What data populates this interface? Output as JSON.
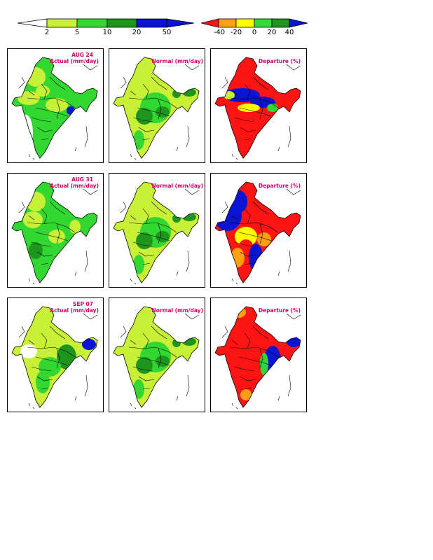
{
  "legend_actual": {
    "ticks": [
      "2",
      "5",
      "10",
      "20",
      "50"
    ],
    "colors": [
      "#ffffff",
      "#c8f036",
      "#32d732",
      "#1e961e",
      "#0a14d2"
    ]
  },
  "legend_departure": {
    "ticks": [
      "-40",
      "-20",
      "0",
      "20",
      "40"
    ],
    "colors": [
      "#ff1414",
      "#ffa014",
      "#ffff00",
      "#32dc32",
      "#1e961e",
      "#0a14d2"
    ]
  },
  "rows": [
    {
      "date": "AUG 24",
      "actual_label": "Actual (mm/day)",
      "normal_label": "Normal (mm/day)",
      "departure_label": "Departure (%)"
    },
    {
      "date": "AUG 31",
      "actual_label": "Actual (mm/day)",
      "normal_label": "Normal (mm/day)",
      "departure_label": "Departure (%)"
    },
    {
      "date": "SEP 07",
      "actual_label": "Actual (mm/day)",
      "normal_label": "Normal (mm/day)",
      "departure_label": "Departure (%)"
    }
  ]
}
